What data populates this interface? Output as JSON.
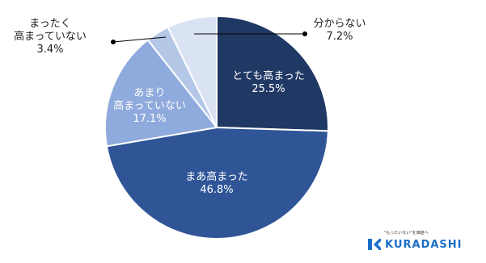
{
  "chart_data": {
    "type": "pie",
    "categories": [
      "とても高まった",
      "まあ高まった",
      "あまり\n高まっていない",
      "まったく\n高まっていない",
      "分からない"
    ],
    "values": [
      25.5,
      46.8,
      17.1,
      3.4,
      7.2
    ],
    "value_labels": [
      "25.5%",
      "46.8%",
      "17.1%",
      "3.4%",
      "7.2%"
    ],
    "colors": [
      "#203864",
      "#2f5597",
      "#8faadc",
      "#b4c7e7",
      "#dae3f3"
    ]
  },
  "logo": {
    "tagline": "\"もったいない\"を価値へ",
    "name": "KURADASHI"
  }
}
